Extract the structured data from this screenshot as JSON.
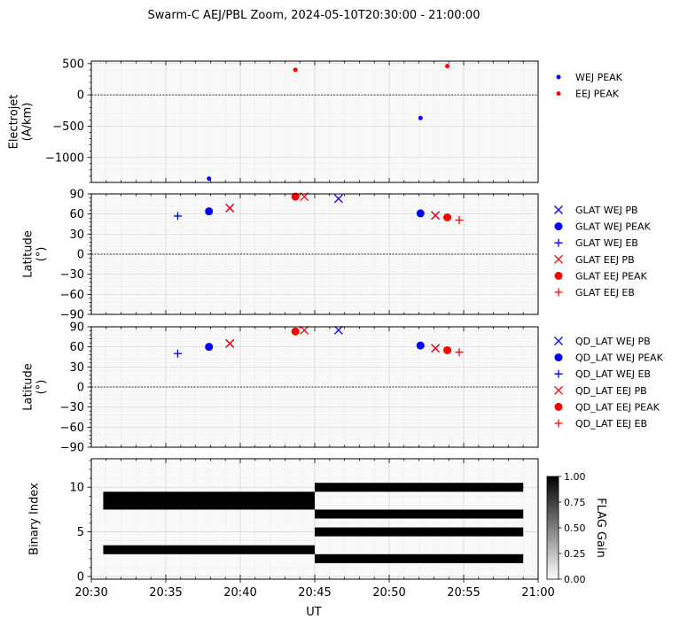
{
  "figure": {
    "title": "Swarm-C AEJ/PBL Zoom, 2024-05-10T20:30:00 - 21:00:00",
    "xlabel": "UT",
    "x_ticks": [
      "20:30",
      "20:35",
      "20:40",
      "20:45",
      "20:50",
      "20:55",
      "21:00"
    ],
    "colors": {
      "wej": "#0000ff",
      "eej": "#ff0000",
      "flag": "#000000"
    }
  },
  "chart_data": [
    {
      "type": "scatter",
      "panel": "electrojet",
      "ylabel": [
        "Electrojet",
        "(A/km)"
      ],
      "x_unit": "minutes after 20:30 UT",
      "xlim": [
        0,
        30
      ],
      "ylim": [
        -1400,
        540
      ],
      "yticks": [
        500,
        0,
        -500,
        -1000
      ],
      "ytick_labels": [
        "500",
        "0",
        "−500",
        "−1000"
      ],
      "zero_line": true,
      "grid": true,
      "legend": "right",
      "series": [
        {
          "name": "WEJ PEAK",
          "color": "#0000ff",
          "marker": "point",
          "points": [
            [
              7.9,
              -1340
            ],
            [
              22.1,
              -370
            ]
          ]
        },
        {
          "name": "EEJ PEAK",
          "color": "#ff0000",
          "marker": "point",
          "points": [
            [
              13.7,
              400
            ],
            [
              23.9,
              460
            ]
          ]
        }
      ]
    },
    {
      "type": "scatter",
      "panel": "glat",
      "ylabel": [
        "Latitude",
        "(°)"
      ],
      "xlim": [
        0,
        30
      ],
      "ylim": [
        -90,
        90
      ],
      "yticks": [
        90,
        60,
        30,
        0,
        -30,
        -60,
        -90
      ],
      "ytick_labels": [
        "90",
        "60",
        "30",
        "0",
        "−30",
        "−60",
        "−90"
      ],
      "zero_line": true,
      "grid": true,
      "legend": "right",
      "series": [
        {
          "name": "GLAT WEJ PB",
          "color": "#0000ff",
          "marker": "x",
          "points": [
            [
              9.3,
              69
            ],
            [
              16.6,
              83
            ],
            [
              23.1,
              58
            ]
          ]
        },
        {
          "name": "GLAT WEJ PEAK",
          "color": "#0000ff",
          "marker": "o",
          "points": [
            [
              7.9,
              64
            ],
            [
              22.1,
              61
            ]
          ]
        },
        {
          "name": "GLAT WEJ EB",
          "color": "#0000ff",
          "marker": "+",
          "points": [
            [
              5.8,
              57
            ]
          ]
        },
        {
          "name": "GLAT EEJ PB",
          "color": "#ff0000",
          "marker": "x",
          "points": [
            [
              9.3,
              69
            ],
            [
              14.3,
              86
            ],
            [
              23.1,
              58
            ]
          ]
        },
        {
          "name": "GLAT EEJ PEAK",
          "color": "#ff0000",
          "marker": "o",
          "points": [
            [
              13.7,
              86
            ],
            [
              23.9,
              55
            ]
          ]
        },
        {
          "name": "GLAT EEJ EB",
          "color": "#ff0000",
          "marker": "+",
          "points": [
            [
              24.7,
              51
            ]
          ]
        }
      ]
    },
    {
      "type": "scatter",
      "panel": "qd_lat",
      "ylabel": [
        "Latitude",
        "(°)"
      ],
      "xlim": [
        0,
        30
      ],
      "ylim": [
        -90,
        90
      ],
      "yticks": [
        90,
        60,
        30,
        0,
        -30,
        -60,
        -90
      ],
      "ytick_labels": [
        "90",
        "60",
        "30",
        "0",
        "−30",
        "−60",
        "−90"
      ],
      "zero_line": true,
      "grid": true,
      "legend": "right",
      "series": [
        {
          "name": "QD_LAT WEJ PB",
          "color": "#0000ff",
          "marker": "x",
          "points": [
            [
              9.3,
              65
            ],
            [
              16.6,
              85
            ],
            [
              23.1,
              58
            ]
          ]
        },
        {
          "name": "QD_LAT WEJ PEAK",
          "color": "#0000ff",
          "marker": "o",
          "points": [
            [
              7.9,
              60
            ],
            [
              22.1,
              62
            ]
          ]
        },
        {
          "name": "QD_LAT WEJ EB",
          "color": "#0000ff",
          "marker": "+",
          "points": [
            [
              5.8,
              50
            ]
          ]
        },
        {
          "name": "QD_LAT EEJ PB",
          "color": "#ff0000",
          "marker": "x",
          "points": [
            [
              9.3,
              65
            ],
            [
              14.3,
              85
            ],
            [
              23.1,
              58
            ]
          ]
        },
        {
          "name": "QD_LAT EEJ PEAK",
          "color": "#ff0000",
          "marker": "o",
          "points": [
            [
              13.7,
              83
            ],
            [
              23.9,
              55
            ]
          ]
        },
        {
          "name": "QD_LAT EEJ EB",
          "color": "#ff0000",
          "marker": "+",
          "points": [
            [
              24.7,
              52
            ]
          ]
        }
      ]
    },
    {
      "type": "heatmap",
      "panel": "flags",
      "ylabel": [
        "Binary Index"
      ],
      "xlim": [
        0,
        30
      ],
      "ylim": [
        -0.3,
        13.2
      ],
      "yticks": [
        10,
        5,
        0
      ],
      "ytick_labels": [
        "10",
        "5",
        "0"
      ],
      "grid": true,
      "cells": [
        {
          "x0": 0.8,
          "x1": 15.0,
          "y0": 7.5,
          "y1": 9.5,
          "value": 1
        },
        {
          "x0": 0.8,
          "x1": 15.0,
          "y0": 2.5,
          "y1": 3.5,
          "value": 1
        },
        {
          "x0": 15.0,
          "x1": 29.0,
          "y0": 9.5,
          "y1": 10.5,
          "value": 1
        },
        {
          "x0": 15.0,
          "x1": 29.0,
          "y0": 6.5,
          "y1": 7.5,
          "value": 1
        },
        {
          "x0": 15.0,
          "x1": 29.0,
          "y0": 4.5,
          "y1": 5.5,
          "value": 1
        },
        {
          "x0": 15.0,
          "x1": 29.0,
          "y0": 1.5,
          "y1": 2.5,
          "value": 1
        }
      ],
      "colorbar": {
        "label": "FLAG Gain",
        "range": [
          0,
          1
        ],
        "ticks": [
          "1.00",
          "0.75",
          "0.50",
          "0.25",
          "0.00"
        ],
        "colormap": "white-to-black"
      }
    }
  ]
}
